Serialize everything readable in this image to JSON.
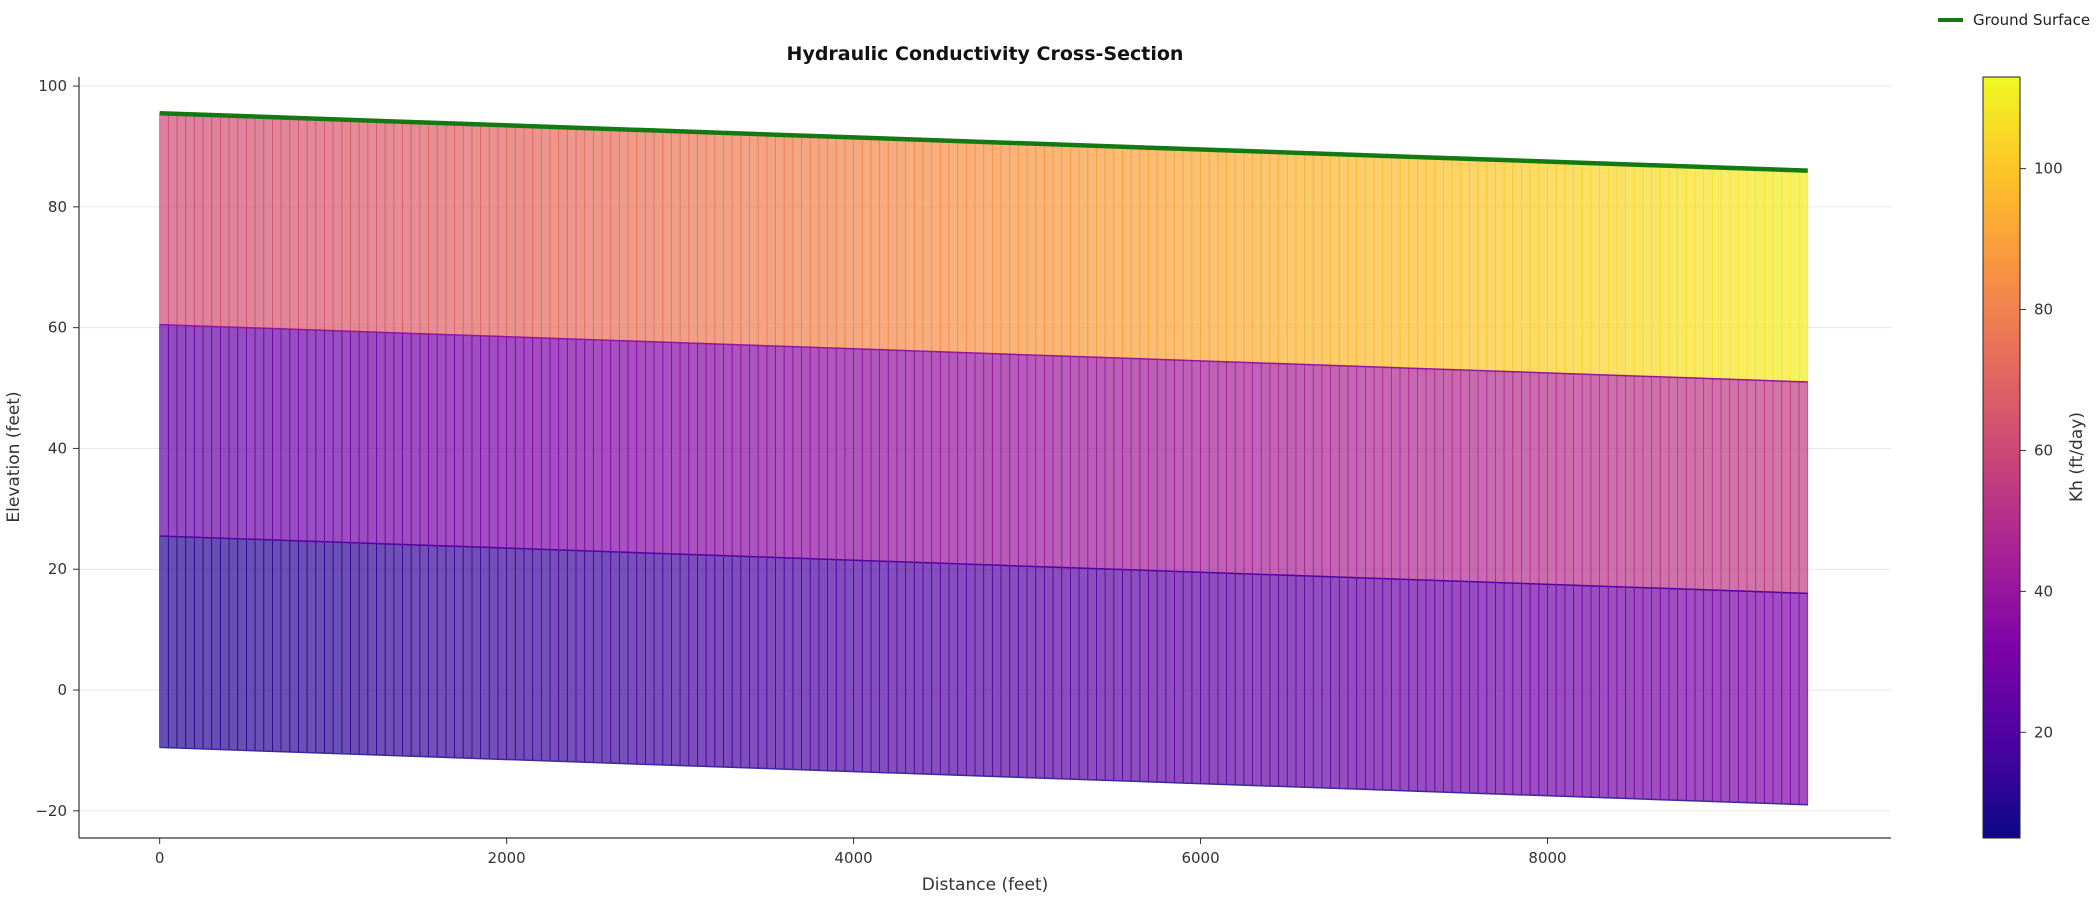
{
  "chart_data": {
    "type": "heatmap",
    "title": "Hydraulic Conductivity Cross-Section",
    "xlabel": "Distance (feet)",
    "ylabel": "Elevation (feet)",
    "xlim": [
      -465,
      9980
    ],
    "ylim": [
      -24.5,
      101.5
    ],
    "x_ticks": [
      0,
      2000,
      4000,
      6000,
      8000
    ],
    "y_ticks": [
      -20,
      0,
      20,
      40,
      60,
      80,
      100
    ],
    "grid": true,
    "legend": {
      "placement": "top-right",
      "entries": [
        {
          "label": "Ground Surface",
          "color": "#137a13"
        }
      ]
    },
    "colorbar": {
      "label": "Kh (ft/day)",
      "colormap": "plasma",
      "range": [
        5,
        113
      ],
      "ticks": [
        20,
        40,
        60,
        80,
        100
      ]
    },
    "ground_surface": {
      "name": "Ground Surface",
      "x": [
        0,
        9500
      ],
      "y": [
        95.5,
        86.0
      ]
    },
    "column_edges": {
      "start": 0,
      "end": 9500,
      "count": 190
    },
    "layers": [
      {
        "top": [
          95.5,
          86.0
        ],
        "bottom": [
          60.5,
          51.0
        ],
        "kh": [
          60,
          110
        ]
      },
      {
        "top": [
          60.5,
          51.0
        ],
        "bottom": [
          25.5,
          16.0
        ],
        "kh": [
          25,
          55
        ]
      },
      {
        "top": [
          25.5,
          16.0
        ],
        "bottom": [
          -9.5,
          -19.0
        ],
        "kh": [
          10,
          32
        ]
      }
    ]
  }
}
